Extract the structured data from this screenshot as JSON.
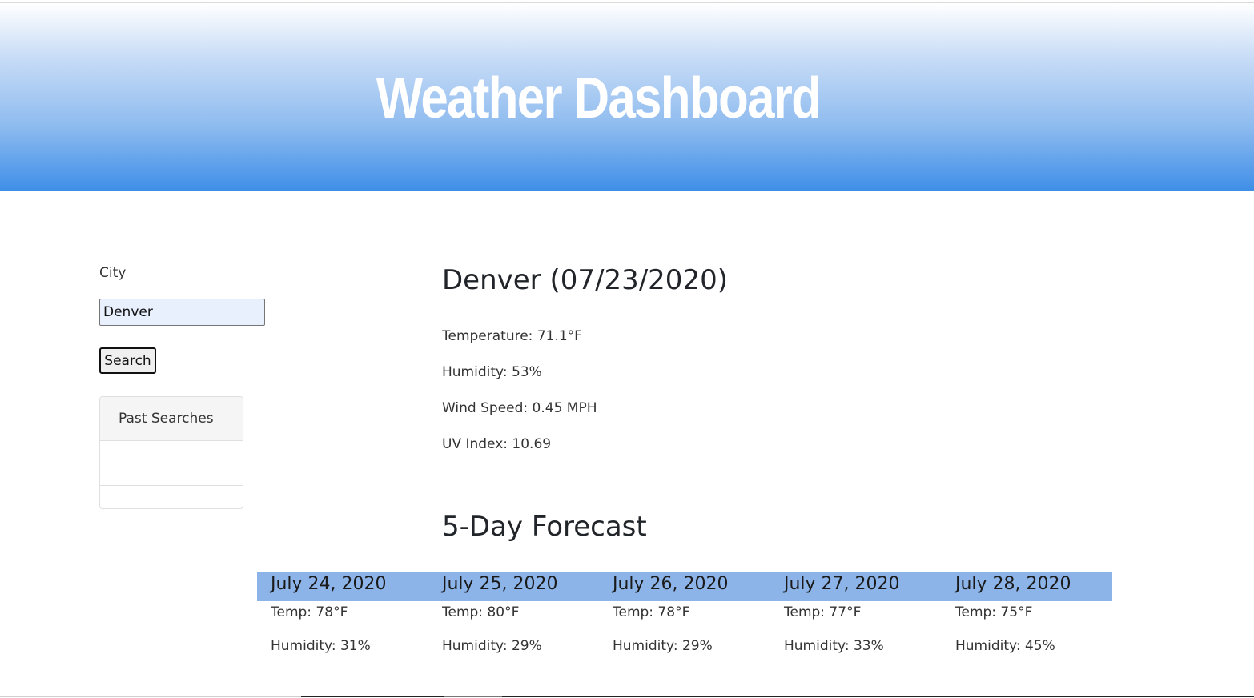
{
  "header": {
    "title": "Weather Dashboard"
  },
  "search": {
    "label": "City",
    "value": "Denver",
    "button_label": "Search"
  },
  "past_searches": {
    "title": "Past Searches",
    "items": [
      "",
      "",
      ""
    ]
  },
  "current": {
    "title": "Denver (07/23/2020)",
    "temperature": "Temperature: 71.1°F",
    "humidity": "Humidity: 53%",
    "wind_speed": "Wind Speed: 0.45 MPH",
    "uv_index": "UV Index: 10.69"
  },
  "forecast": {
    "title": "5-Day Forecast",
    "days": [
      {
        "date": "July 24, 2020",
        "temp": "Temp: 78°F",
        "humidity": "Humidity: 31%"
      },
      {
        "date": "July 25, 2020",
        "temp": "Temp: 80°F",
        "humidity": "Humidity: 29%"
      },
      {
        "date": "July 26, 2020",
        "temp": "Temp: 78°F",
        "humidity": "Humidity: 29%"
      },
      {
        "date": "July 27, 2020",
        "temp": "Temp: 77°F",
        "humidity": "Humidity: 33%"
      },
      {
        "date": "July 28, 2020",
        "temp": "Temp: 75°F",
        "humidity": "Humidity: 45%"
      }
    ]
  },
  "colors": {
    "header_gradient_bottom": "#3f8fe8",
    "forecast_band": "#8cb4e8",
    "input_background": "#e8f0fe"
  }
}
